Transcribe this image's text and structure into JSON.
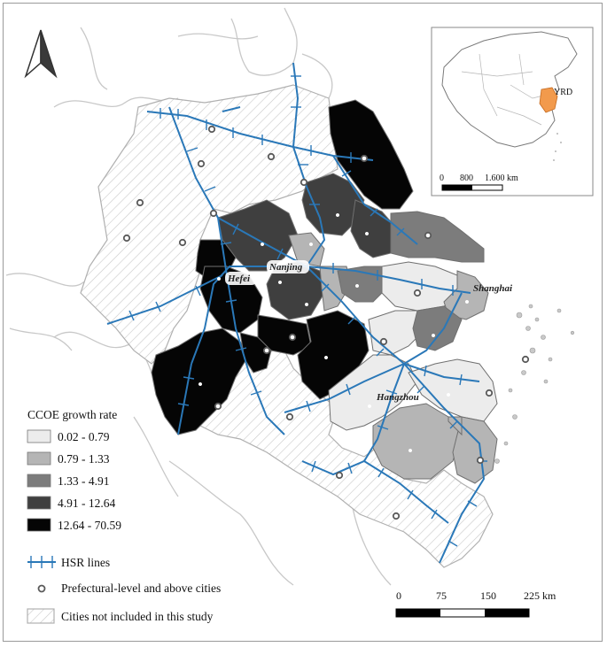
{
  "legend": {
    "title": "CCOE growth rate",
    "classes": [
      {
        "label": "0.02 - 0.79",
        "color": "#ececec"
      },
      {
        "label": "0.79 - 1.33",
        "color": "#b5b5b5"
      },
      {
        "label": "1.33 - 4.91",
        "color": "#7c7c7c"
      },
      {
        "label": "4.91 - 12.64",
        "color": "#3f3f3f"
      },
      {
        "label": "12.64 - 70.59",
        "color": "#050505"
      }
    ],
    "hsr_label": "HSR lines",
    "hsr_color": "#2a78b8",
    "cities_label": "Prefectural-level and above cities",
    "excluded_label": "Cities not included in this study"
  },
  "city_labels": {
    "nanjing": "Nanjing",
    "hefei": "Hefei",
    "shanghai": "Shanghai",
    "hangzhou": "Hangzhou"
  },
  "scale_bar": {
    "ticks": [
      "0",
      "75",
      "150",
      "225 km"
    ]
  },
  "inset": {
    "region_label": "YRD",
    "highlight_color": "#f29a4c",
    "scale_ticks": [
      "0",
      "800",
      "1.600 km"
    ]
  },
  "north_arrow": {
    "icon": "north-arrow-icon"
  }
}
